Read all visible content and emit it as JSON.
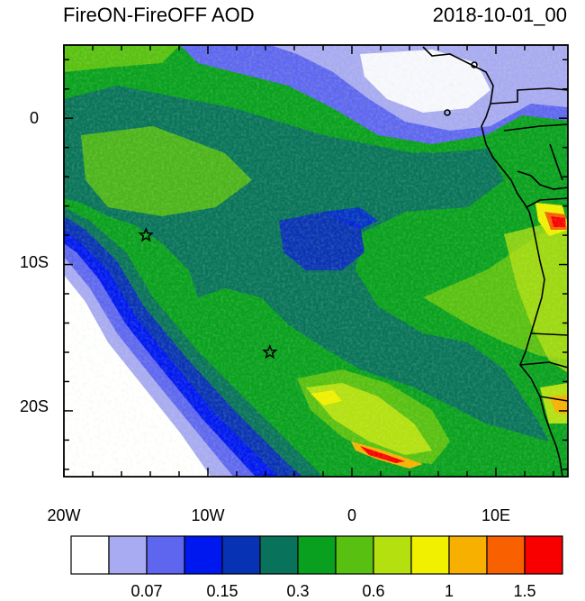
{
  "title": "FireON-FireOFF AOD",
  "timestamp": "2018-10-01_00",
  "axes": {
    "x_ticks": [
      "20W",
      "10W",
      "0",
      "10E"
    ],
    "y_ticks": [
      "0",
      "10S",
      "20S"
    ]
  },
  "colorbar": {
    "colors": [
      "#ffffff",
      "#a8aaf2",
      "#5e66f0",
      "#0018f0",
      "#0832b4",
      "#08735a",
      "#08a01e",
      "#58c010",
      "#b4e010",
      "#f0f000",
      "#f8b000",
      "#f86000",
      "#f80000"
    ],
    "labels": [
      {
        "text": "0.07",
        "boundary": 2
      },
      {
        "text": "0.15",
        "boundary": 4
      },
      {
        "text": "0.3",
        "boundary": 6
      },
      {
        "text": "0.6",
        "boundary": 8
      },
      {
        "text": "1",
        "boundary": 10
      },
      {
        "text": "1.5",
        "boundary": 12
      }
    ]
  },
  "markers": [
    {
      "name": "star-marker-1",
      "lon": -14.3,
      "lat": -8.0
    },
    {
      "name": "star-marker-2",
      "lon": -5.7,
      "lat": -16.0
    }
  ],
  "extent": {
    "lon_min": -20,
    "lon_max": 15,
    "lat_min": -24.5,
    "lat_max": 5
  }
}
